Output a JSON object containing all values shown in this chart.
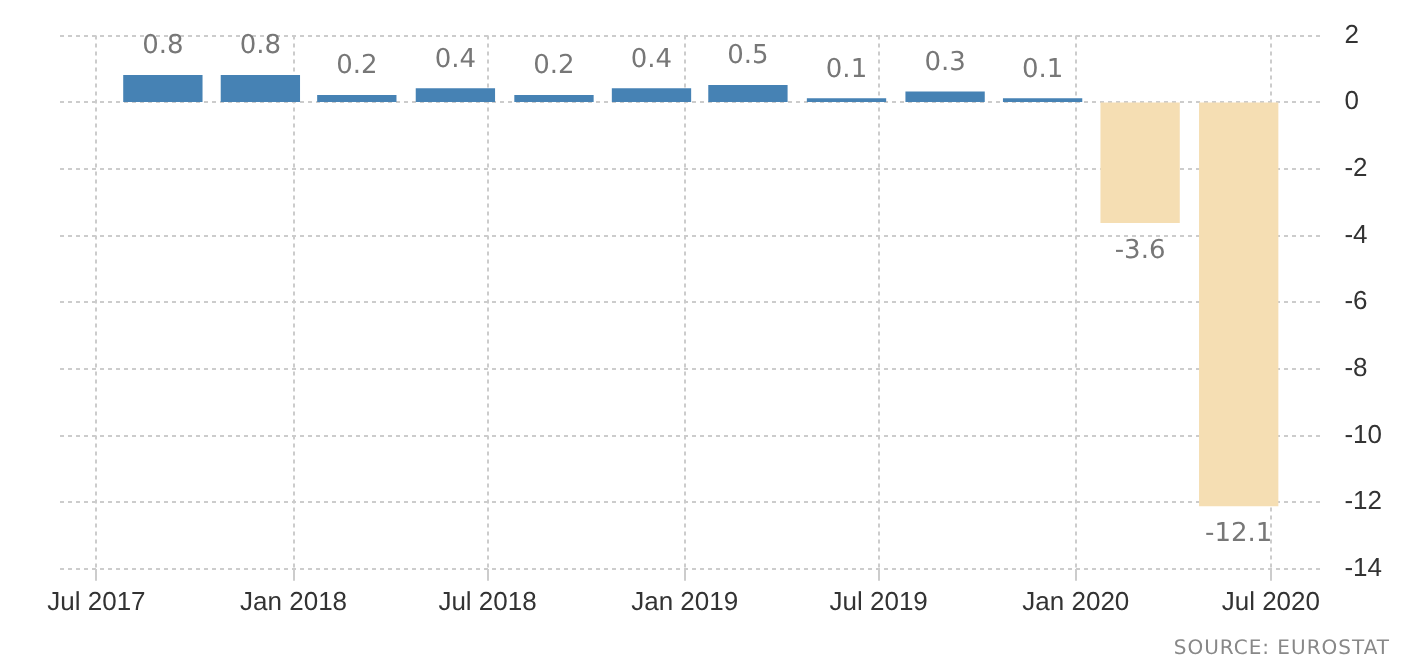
{
  "chart_data": {
    "type": "bar",
    "x": [
      "2017-09",
      "2017-12",
      "2018-03",
      "2018-06",
      "2018-09",
      "2018-12",
      "2019-03",
      "2019-06",
      "2019-09",
      "2019-12",
      "2020-03",
      "2020-06"
    ],
    "values": [
      0.8,
      0.8,
      0.2,
      0.4,
      0.2,
      0.4,
      0.5,
      0.1,
      0.3,
      0.1,
      -3.6,
      -12.1
    ],
    "colors": [
      "#4682b4",
      "#4682b4",
      "#4682b4",
      "#4682b4",
      "#4682b4",
      "#4682b4",
      "#4682b4",
      "#4682b4",
      "#4682b4",
      "#4682b4",
      "#f5deb3",
      "#f5deb3"
    ],
    "data_labels": true,
    "xlim": [
      "2017-05-28",
      "2020-08-20"
    ],
    "xticks": [
      {
        "value": "2017-07",
        "label": "Jul 2017"
      },
      {
        "value": "2018-01",
        "label": "Jan 2018"
      },
      {
        "value": "2018-07",
        "label": "Jul 2018"
      },
      {
        "value": "2019-01",
        "label": "Jan 2019"
      },
      {
        "value": "2019-07",
        "label": "Jul 2019"
      },
      {
        "value": "2020-01",
        "label": "Jan 2020"
      },
      {
        "value": "2020-07",
        "label": "Jul 2020"
      }
    ],
    "ylim": [
      -14,
      2
    ],
    "yticks": [
      -14,
      -12,
      -10,
      -8,
      -6,
      -4,
      -2,
      0,
      2
    ],
    "grid": true,
    "legend": false,
    "annotations": [
      "SOURCE: EUROSTAT"
    ]
  }
}
